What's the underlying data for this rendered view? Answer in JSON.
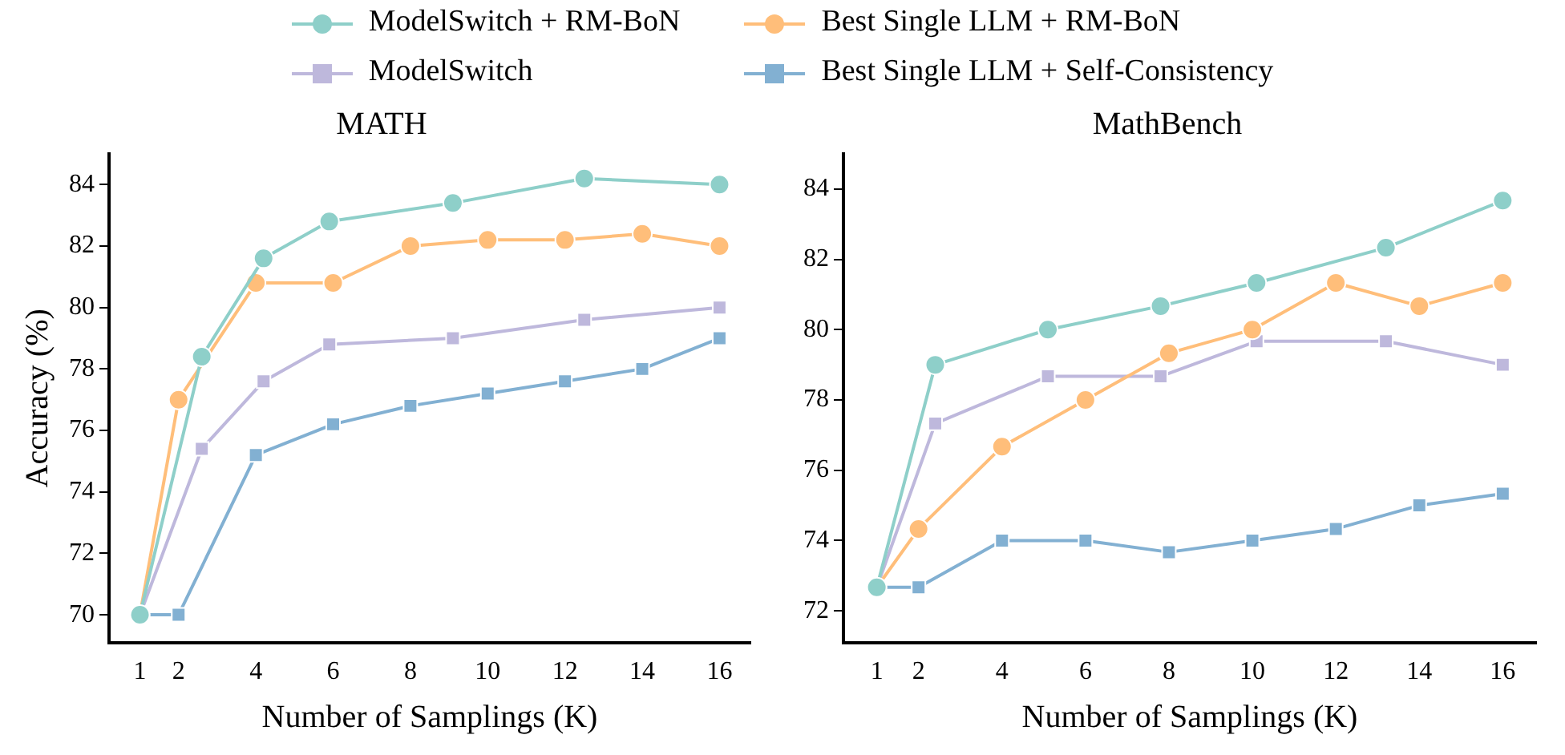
{
  "chart_data": [
    {
      "type": "line",
      "title": "MATH",
      "xlabel": "Number of Samplings (K)",
      "ylabel": "Accuracy (%)",
      "xlim": [
        0.2,
        16.8
      ],
      "xticks": [
        1,
        2,
        4,
        6,
        8,
        10,
        12,
        14,
        16
      ],
      "ylim": [
        69.1,
        85
      ],
      "yticks": [
        70,
        72,
        74,
        76,
        78,
        80,
        82,
        84
      ],
      "grid": false,
      "legend": "top",
      "series": [
        {
          "name": "ModelSwitch + RM-BoN",
          "color": "#8ecfc9",
          "marker": "circle",
          "x": [
            1,
            2.6,
            4.2,
            5.9,
            9.1,
            12.5,
            16
          ],
          "values": [
            70,
            78.4,
            81.6,
            82.8,
            83.4,
            84.2,
            84.0
          ]
        },
        {
          "name": "Best Single LLM + RM-BoN",
          "color": "#ffbe7a",
          "marker": "circle",
          "x": [
            1,
            2,
            4,
            6,
            8,
            10,
            12,
            14,
            16
          ],
          "values": [
            70,
            77,
            80.8,
            80.8,
            82,
            82.2,
            82.2,
            82.4,
            82
          ]
        },
        {
          "name": "ModelSwitch",
          "color": "#beb8dc",
          "marker": "square",
          "x": [
            1,
            2.6,
            4.2,
            5.9,
            9.1,
            12.5,
            16
          ],
          "values": [
            70,
            75.4,
            77.6,
            78.8,
            79.0,
            79.6,
            80.0
          ]
        },
        {
          "name": "Best Single LLM + Self-Consistency",
          "color": "#82b0d2",
          "marker": "square",
          "x": [
            1,
            2,
            4,
            6,
            8,
            10,
            12,
            14,
            16
          ],
          "values": [
            70,
            70,
            75.2,
            76.2,
            76.8,
            77.2,
            77.6,
            78,
            79
          ]
        }
      ]
    },
    {
      "type": "line",
      "title": "MathBench",
      "xlabel": "Number of Samplings (K)",
      "xlim": [
        0.2,
        16.8
      ],
      "xticks": [
        1,
        2,
        4,
        6,
        8,
        10,
        12,
        14,
        16
      ],
      "ylim": [
        71.1,
        85
      ],
      "yticks": [
        72,
        74,
        76,
        78,
        80,
        82,
        84
      ],
      "grid": false,
      "legend": "top",
      "series": [
        {
          "name": "ModelSwitch + RM-BoN",
          "color": "#8ecfc9",
          "marker": "circle",
          "x": [
            1,
            2.4,
            5.1,
            7.8,
            10.1,
            13.2,
            16
          ],
          "values": [
            72.67,
            79,
            80,
            80.67,
            81.33,
            82.33,
            83.67
          ]
        },
        {
          "name": "Best Single LLM + RM-BoN",
          "color": "#ffbe7a",
          "marker": "circle",
          "x": [
            1,
            2,
            4,
            6,
            8,
            10,
            12,
            14,
            16
          ],
          "values": [
            72.67,
            74.33,
            76.67,
            78,
            79.33,
            80,
            81.33,
            80.67,
            81.33
          ]
        },
        {
          "name": "ModelSwitch",
          "color": "#beb8dc",
          "marker": "square",
          "x": [
            1,
            2.4,
            5.1,
            7.8,
            10.1,
            13.2,
            16
          ],
          "values": [
            72.67,
            77.33,
            78.67,
            78.67,
            79.67,
            79.67,
            79
          ]
        },
        {
          "name": "Best Single LLM + Self-Consistency",
          "color": "#82b0d2",
          "marker": "square",
          "x": [
            1,
            2,
            4,
            6,
            8,
            10,
            12,
            14,
            16
          ],
          "values": [
            72.67,
            72.67,
            74,
            74,
            73.67,
            74,
            74.33,
            75,
            75.33
          ]
        }
      ]
    }
  ]
}
